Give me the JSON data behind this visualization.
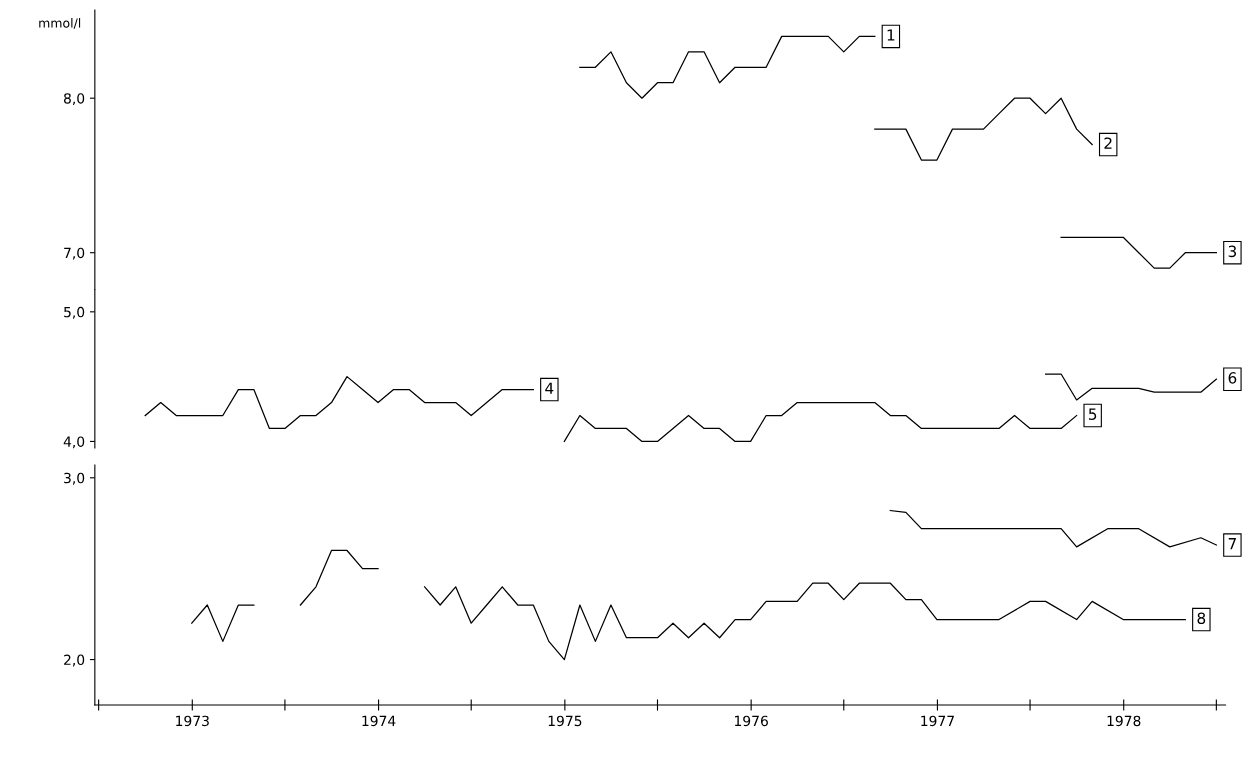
{
  "chart_data": [
    {
      "type": "line",
      "ylabel": "mmol/l",
      "xlim": [
        "1972-12-24",
        "1979-01-19"
      ],
      "ylim": [
        6.76,
        8.57
      ],
      "yticks": [
        {
          "value": 7.0,
          "label": "7,0"
        },
        {
          "value": 8.0,
          "label": "8,0"
        }
      ],
      "tick_labels": "y",
      "grid": false,
      "legend": false,
      "marker": "none",
      "line_style": "solid",
      "series": [
        {
          "name": "1",
          "color": "#000000",
          "x": [
            "1975-08",
            "1975-09",
            "1975-10",
            "1975-11",
            "1975-12",
            "1976-01",
            "1976-02",
            "1976-03",
            "1976-04",
            "1976-05",
            "1976-06",
            "1976-07",
            "1976-08",
            "1976-09",
            "1976-10",
            "1976-11",
            "1976-12",
            "1977-01",
            "1977-02",
            "1977-03"
          ],
          "values": [
            8.2,
            8.2,
            8.3,
            8.1,
            8.0,
            8.1,
            8.1,
            8.3,
            8.3,
            8.1,
            8.2,
            8.2,
            8.2,
            8.4,
            8.4,
            8.4,
            8.4,
            8.3,
            8.4,
            8.4
          ]
        },
        {
          "name": "2",
          "color": "#000000",
          "x": [
            "1977-03",
            "1977-04",
            "1977-05",
            "1977-06",
            "1977-07",
            "1977-08",
            "1977-09",
            "1977-10",
            "1977-11",
            "1977-12",
            "1978-01",
            "1978-02",
            "1978-03",
            "1978-04",
            "1978-05"
          ],
          "values": [
            7.8,
            7.8,
            7.8,
            7.6,
            7.6,
            7.8,
            7.8,
            7.8,
            7.9,
            8.0,
            8.0,
            7.9,
            8.0,
            7.8,
            7.7
          ]
        },
        {
          "name": "3",
          "color": "#000000",
          "x": [
            "1978-03",
            "1978-05",
            "1978-06",
            "1978-07",
            "1978-08",
            "1978-09",
            "1978-10",
            "1978-11",
            "1978-12",
            "1979-01"
          ],
          "values": [
            7.1,
            7.1,
            7.1,
            7.1,
            7.0,
            6.9,
            6.9,
            7.0,
            7.0,
            7.0
          ]
        }
      ]
    },
    {
      "type": "line",
      "xlim": [
        "1972-12-24",
        "1979-01-19"
      ],
      "ylim": [
        3.95,
        5.17
      ],
      "yticks": [
        {
          "value": 4.0,
          "label": "4,0"
        },
        {
          "value": 5.0,
          "label": "5,0"
        }
      ],
      "tick_labels": "y",
      "grid": false,
      "legend": false,
      "marker": "none",
      "line_style": "solid",
      "series": [
        {
          "name": "4",
          "color": "#000000",
          "x": [
            "1973-04",
            "1973-05",
            "1973-06",
            "1973-07",
            "1973-08",
            "1973-09",
            "1973-10",
            "1973-11",
            "1973-12",
            "1974-01",
            "1974-02",
            "1974-03",
            "1974-04",
            "1974-05",
            "1974-06",
            "1974-07",
            "1974-08",
            "1974-09",
            "1974-10",
            "1974-11",
            "1974-12",
            "1975-01",
            "1975-02",
            "1975-03",
            "1975-04",
            "1975-05"
          ],
          "values": [
            4.2,
            4.3,
            4.2,
            4.2,
            4.2,
            4.2,
            4.4,
            4.4,
            4.1,
            4.1,
            4.2,
            4.2,
            4.3,
            4.5,
            4.4,
            4.3,
            4.4,
            4.4,
            4.3,
            4.3,
            4.3,
            4.2,
            4.3,
            4.4,
            4.4,
            4.4
          ]
        },
        {
          "name": "5",
          "color": "#000000",
          "x": [
            "1975-07",
            "1975-08",
            "1975-09",
            "1975-10",
            "1975-11",
            "1975-12",
            "1976-01",
            "1976-02",
            "1976-03",
            "1976-04",
            "1976-05",
            "1976-06",
            "1976-07",
            "1976-08",
            "1976-09",
            "1976-10",
            "1976-11",
            "1976-12",
            "1977-01",
            "1977-02",
            "1977-03",
            "1977-04",
            "1977-05",
            "1977-06",
            "1977-07",
            "1977-08",
            "1977-09",
            "1977-10",
            "1977-11",
            "1977-12",
            "1978-01",
            "1978-02",
            "1978-03",
            "1978-04"
          ],
          "values": [
            4.0,
            4.2,
            4.1,
            4.1,
            4.1,
            4.0,
            4.0,
            4.1,
            4.2,
            4.1,
            4.1,
            4.0,
            4.0,
            4.2,
            4.2,
            4.3,
            4.3,
            4.3,
            4.3,
            4.3,
            4.3,
            4.2,
            4.2,
            4.1,
            4.1,
            4.1,
            4.1,
            4.1,
            4.1,
            4.2,
            4.1,
            4.1,
            4.1,
            4.2
          ]
        },
        {
          "name": "6",
          "color": "#000000",
          "x": [
            "1978-02",
            "1978-03",
            "1978-04",
            "1978-05",
            "1978-06",
            "1978-07",
            "1978-08",
            "1978-09",
            "1978-10",
            "1978-11",
            "1978-12",
            "1979-01"
          ],
          "values": [
            4.52,
            4.52,
            4.32,
            4.41,
            4.41,
            4.41,
            4.41,
            4.38,
            4.38,
            4.38,
            4.38,
            4.48
          ]
        }
      ]
    },
    {
      "type": "line",
      "xlim": [
        "1972-12-24",
        "1979-01-19"
      ],
      "ylim": [
        1.75,
        3.07
      ],
      "yticks": [
        {
          "value": 2.0,
          "label": "2,0"
        },
        {
          "value": 3.0,
          "label": "3,0"
        }
      ],
      "xticks": [
        {
          "value": "1973-01-01",
          "label": null
        },
        {
          "value": "1973-07-02",
          "label": "1973"
        },
        {
          "value": "1974-01-01",
          "label": null
        },
        {
          "value": "1974-07-02",
          "label": "1974"
        },
        {
          "value": "1975-01-01",
          "label": null
        },
        {
          "value": "1975-07-02",
          "label": "1975"
        },
        {
          "value": "1976-01-01",
          "label": null
        },
        {
          "value": "1976-07-02",
          "label": "1976"
        },
        {
          "value": "1977-01-01",
          "label": null
        },
        {
          "value": "1977-07-02",
          "label": "1977"
        },
        {
          "value": "1978-01-01",
          "label": null
        },
        {
          "value": "1978-07-02",
          "label": "1978"
        },
        {
          "value": "1979-01-01",
          "label": null
        }
      ],
      "grid": false,
      "legend": false,
      "marker": "none",
      "line_style": "solid",
      "series": [
        {
          "name": "7",
          "color": "#000000",
          "x": [
            "1977-04",
            "1977-05",
            "1977-06",
            "1977-08",
            "1977-09",
            "1977-10",
            "1977-11",
            "1977-12",
            "1978-01",
            "1978-03",
            "1978-04",
            "1978-06",
            "1978-08",
            "1978-10",
            "1978-12",
            "1979-01"
          ],
          "values": [
            2.82,
            2.81,
            2.72,
            2.72,
            2.72,
            2.72,
            2.72,
            2.72,
            2.72,
            2.72,
            2.62,
            2.72,
            2.72,
            2.62,
            2.67,
            2.63
          ]
        },
        {
          "name": "8",
          "color": "#000000",
          "x": [
            "1973-07",
            "1973-08",
            "1973-09",
            "1973-10",
            "1973-11",
            "1973-12",
            "1974-02",
            "1974-03",
            "1974-04",
            "1974-05",
            "1974-06",
            "1974-07",
            "1974-08",
            "1974-10",
            "1974-11",
            "1974-12",
            "1975-01",
            "1975-02",
            "1975-03",
            "1975-04",
            "1975-05",
            "1975-06",
            "1975-07",
            "1975-08",
            "1975-09",
            "1975-10",
            "1975-11",
            "1975-12",
            "1976-01",
            "1976-02",
            "1976-03",
            "1976-04",
            "1976-05",
            "1976-06",
            "1976-07",
            "1976-08",
            "1976-09",
            "1976-10",
            "1976-11",
            "1976-12",
            "1977-01",
            "1977-02",
            "1977-03",
            "1977-04",
            "1977-05",
            "1977-06",
            "1977-07",
            "1977-08",
            "1977-09",
            "1977-10",
            "1977-11",
            "1978-01",
            "1978-02",
            "1978-04",
            "1978-05",
            "1978-07",
            "1978-09",
            "1978-11"
          ],
          "values": [
            2.2,
            2.3,
            2.1,
            2.3,
            2.3,
            null,
            2.3,
            2.4,
            2.6,
            2.6,
            2.5,
            2.5,
            null,
            2.4,
            2.3,
            2.4,
            2.2,
            2.3,
            2.4,
            2.3,
            2.3,
            2.1,
            2.0,
            2.3,
            2.1,
            2.3,
            2.12,
            2.12,
            2.12,
            2.2,
            2.12,
            2.2,
            2.12,
            2.22,
            2.22,
            2.32,
            2.32,
            2.32,
            2.42,
            2.42,
            2.33,
            2.42,
            2.42,
            2.42,
            2.33,
            2.33,
            2.22,
            2.22,
            2.22,
            2.22,
            2.22,
            2.32,
            2.32,
            2.22,
            2.32,
            2.22,
            2.22,
            2.22
          ]
        }
      ]
    }
  ]
}
